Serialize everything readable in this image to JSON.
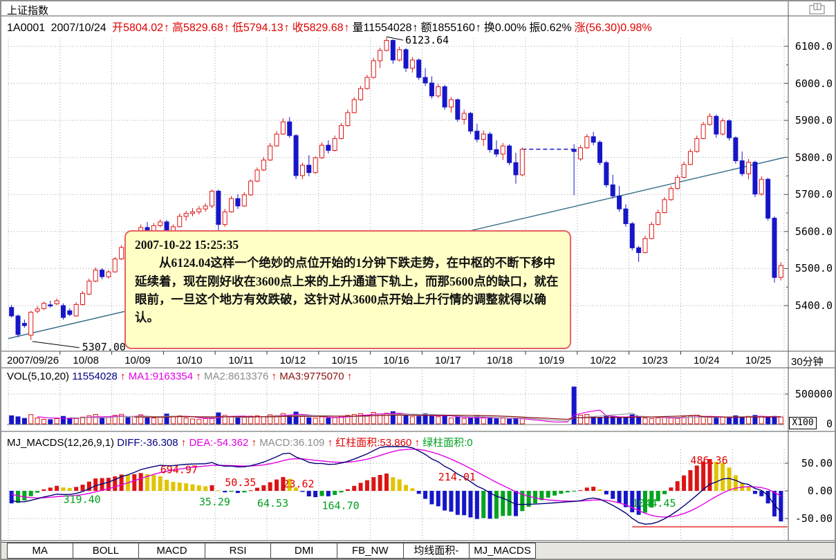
{
  "window": {
    "title": "上证指数",
    "period_label": "30分钟"
  },
  "info_bar": {
    "code": "1A0001",
    "date": "2007/10/24",
    "fields": [
      {
        "label": "开",
        "value": "5804.02",
        "arrow": "↑",
        "color": "red"
      },
      {
        "label": "高",
        "value": "5829.68",
        "arrow": "↑",
        "color": "red"
      },
      {
        "label": "低",
        "value": "5794.13",
        "arrow": "↑",
        "color": "red"
      },
      {
        "label": "收",
        "value": "5829.68",
        "arrow": "↑",
        "color": "red"
      },
      {
        "label": "量",
        "value": "11554028",
        "arrow": "↑",
        "color": "black"
      },
      {
        "label": "额",
        "value": "1855160",
        "arrow": "↑",
        "color": "black"
      },
      {
        "label": "换",
        "value": "0.00%",
        "arrow": "",
        "color": "black"
      },
      {
        "label": "振",
        "value": "0.62%",
        "arrow": "",
        "color": "black"
      },
      {
        "label": "涨",
        "value": "(56.30)0.98%",
        "arrow": "",
        "color": "red"
      }
    ]
  },
  "annotation_box": {
    "timestamp": "2007-10-22 15:25:35",
    "body": "从6124.04这样一个绝妙的点位开始的1分钟下跌走势，在中枢的不断下移中延续着，现在刚好收在3600点上来的上升通道下轨上，而那5600点的缺口，就在眼前，一旦这个地方有效跌破，这针对从3600点开始上升行情的调整就得以确认。"
  },
  "vol_header": {
    "name": "VOL(5,10,20)",
    "value": "11554028",
    "arrow": "↑",
    "ma1": "MA1:9163354",
    "ma2": "MA2:8613376",
    "ma3": "MA3:9775070"
  },
  "macd_header": {
    "name": "MJ_MACDS(12,26,9,1)",
    "arrow": "↑",
    "diff": "DIFF:-36.308",
    "dea": "DEA:-54.362",
    "macd": "MACD:36.109",
    "red_area": "红柱面积:53.860",
    "green_area": "绿柱面积:0"
  },
  "axes": {
    "price_ticks": [
      "6100.0",
      "6000.0",
      "5900.0",
      "5800.0",
      "5700.0",
      "5600.0",
      "5500.0",
      "5400.0"
    ],
    "vol_ticks": [
      "500000",
      "0"
    ],
    "vol_unit": "X100",
    "macd_ticks": [
      "50.00",
      "0.00",
      "-50.00"
    ]
  },
  "tabs": [
    "MA",
    "BOLL",
    "MACD",
    "RSI",
    "DMI",
    "FB_NW",
    "均线面积-",
    "MJ_MACDS"
  ],
  "colors": {
    "up": "#dc1414",
    "down": "#1616c8",
    "trend": "#2e6a82",
    "ma1": "#e400e4",
    "ma2": "#9a9a9a",
    "ma3": "#8a1010",
    "diff": "#000078",
    "dea": "#e400e4",
    "hist_up": "#dc1414",
    "hist_up_fall": "#e0c400",
    "hist_dn": "#1616c8",
    "hist_dn_rise": "#00a41e",
    "grid": "#9aa0a6",
    "ref_line": "#e00000",
    "annotation_bg": "#ffffc6",
    "annotation_border": "#e86060"
  },
  "chart_data": [
    {
      "type": "candlestick",
      "title": "上证指数 30分钟K线",
      "ylim": [
        5280,
        6128
      ],
      "bars_per_day": 8,
      "dates": [
        "2007/09/26",
        "10/08",
        "10/09",
        "10/10",
        "10/11",
        "10/12",
        "10/15",
        "10/16",
        "10/17",
        "10/18",
        "10/19",
        "10/22",
        "10/23",
        "10/24",
        "10/25"
      ],
      "point_labels": [
        {
          "text": "6123.64",
          "bar": 58,
          "price": 6124,
          "side": "peak"
        },
        {
          "text": "5307.00",
          "bar": 3,
          "price": 5307,
          "side": "low"
        }
      ],
      "trendline": {
        "x1_bar": 0,
        "price1": 5311,
        "x2_bar": 120,
        "price2": 5801
      },
      "gap_line": {
        "from_bar": 79,
        "to_bar": 87,
        "price": 5822
      },
      "candles": [
        [
          5395,
          5402,
          5368,
          5372
        ],
        [
          5372,
          5376,
          5315,
          5322
        ],
        [
          5352,
          5362,
          5340,
          5346
        ],
        [
          5320,
          5386,
          5307,
          5382
        ],
        [
          5385,
          5399,
          5379,
          5391
        ],
        [
          5392,
          5411,
          5388,
          5406
        ],
        [
          5402,
          5413,
          5394,
          5399
        ],
        [
          5405,
          5419,
          5401,
          5413
        ],
        [
          5400,
          5406,
          5362,
          5368
        ],
        [
          5386,
          5393,
          5371,
          5376
        ],
        [
          5372,
          5409,
          5370,
          5403
        ],
        [
          5403,
          5439,
          5400,
          5433
        ],
        [
          5431,
          5473,
          5429,
          5466
        ],
        [
          5466,
          5503,
          5463,
          5496
        ],
        [
          5496,
          5501,
          5471,
          5478
        ],
        [
          5478,
          5496,
          5473,
          5491
        ],
        [
          5491,
          5531,
          5489,
          5526
        ],
        [
          5526,
          5563,
          5523,
          5557
        ],
        [
          5557,
          5571,
          5541,
          5548
        ],
        [
          5548,
          5586,
          5545,
          5581
        ],
        [
          5581,
          5619,
          5579,
          5611
        ],
        [
          5611,
          5626,
          5596,
          5601
        ],
        [
          5601,
          5623,
          5597,
          5616
        ],
        [
          5616,
          5633,
          5611,
          5626
        ],
        [
          5626,
          5631,
          5588,
          5596
        ],
        [
          5596,
          5619,
          5591,
          5613
        ],
        [
          5613,
          5649,
          5611,
          5641
        ],
        [
          5641,
          5656,
          5629,
          5649
        ],
        [
          5649,
          5663,
          5641,
          5653
        ],
        [
          5653,
          5669,
          5646,
          5661
        ],
        [
          5661,
          5676,
          5653,
          5669
        ],
        [
          5669,
          5713,
          5663,
          5709
        ],
        [
          5709,
          5713,
          5558,
          5619
        ],
        [
          5619,
          5661,
          5613,
          5653
        ],
        [
          5653,
          5696,
          5651,
          5689
        ],
        [
          5689,
          5701,
          5661,
          5669
        ],
        [
          5669,
          5706,
          5666,
          5699
        ],
        [
          5699,
          5741,
          5696,
          5736
        ],
        [
          5736,
          5773,
          5733,
          5766
        ],
        [
          5766,
          5801,
          5763,
          5793
        ],
        [
          5793,
          5839,
          5791,
          5831
        ],
        [
          5831,
          5871,
          5829,
          5863
        ],
        [
          5863,
          5906,
          5861,
          5896
        ],
        [
          5896,
          5909,
          5853,
          5859
        ],
        [
          5859,
          5863,
          5742,
          5751
        ],
        [
          5751,
          5786,
          5741,
          5779
        ],
        [
          5779,
          5806,
          5749,
          5759
        ],
        [
          5759,
          5803,
          5756,
          5799
        ],
        [
          5799,
          5841,
          5796,
          5833
        ],
        [
          5833,
          5846,
          5811,
          5819
        ],
        [
          5819,
          5859,
          5816,
          5851
        ],
        [
          5851,
          5893,
          5849,
          5886
        ],
        [
          5886,
          5929,
          5883,
          5921
        ],
        [
          5921,
          5963,
          5919,
          5956
        ],
        [
          5956,
          5993,
          5953,
          5986
        ],
        [
          5986,
          6023,
          5983,
          6016
        ],
        [
          6016,
          6069,
          6013,
          6061
        ],
        [
          6061,
          6096,
          6041,
          6089
        ],
        [
          6089,
          6124,
          6086,
          6116
        ],
        [
          6116,
          6119,
          6053,
          6063
        ],
        [
          6063,
          6099,
          6059,
          6091
        ],
        [
          6091,
          6095,
          6031,
          6041
        ],
        [
          6041,
          6071,
          6029,
          6063
        ],
        [
          6063,
          6067,
          6009,
          6016
        ],
        [
          6016,
          6041,
          5993,
          6001
        ],
        [
          6001,
          6019,
          5959,
          5966
        ],
        [
          5966,
          5999,
          5961,
          5991
        ],
        [
          5991,
          5996,
          5929,
          5936
        ],
        [
          5936,
          5963,
          5921,
          5956
        ],
        [
          5956,
          5959,
          5896,
          5903
        ],
        [
          5903,
          5929,
          5889,
          5919
        ],
        [
          5919,
          5923,
          5863,
          5871
        ],
        [
          5871,
          5891,
          5841,
          5849
        ],
        [
          5849,
          5873,
          5831,
          5863
        ],
        [
          5863,
          5869,
          5813,
          5821
        ],
        [
          5821,
          5846,
          5801,
          5809
        ],
        [
          5809,
          5839,
          5793,
          5831
        ],
        [
          5831,
          5836,
          5779,
          5786
        ],
        [
          5786,
          5813,
          5729,
          5753
        ],
        [
          5753,
          5827,
          5749,
          5822
        ],
        null,
        null,
        null,
        null,
        null,
        null,
        null,
        [
          5822,
          5836,
          5698,
          5816
        ],
        [
          5796,
          5833,
          5791,
          5826
        ],
        [
          5826,
          5863,
          5823,
          5856
        ],
        [
          5856,
          5869,
          5833,
          5841
        ],
        [
          5841,
          5846,
          5779,
          5786
        ],
        [
          5786,
          5791,
          5719,
          5726
        ],
        [
          5726,
          5753,
          5689,
          5696
        ],
        [
          5696,
          5723,
          5653,
          5661
        ],
        [
          5661,
          5673,
          5613,
          5621
        ],
        [
          5621,
          5626,
          5549,
          5556
        ],
        [
          5556,
          5561,
          5518,
          5543
        ],
        [
          5543,
          5589,
          5541,
          5581
        ],
        [
          5581,
          5626,
          5579,
          5619
        ],
        [
          5619,
          5659,
          5616,
          5651
        ],
        [
          5651,
          5693,
          5649,
          5686
        ],
        [
          5686,
          5723,
          5683,
          5716
        ],
        [
          5716,
          5753,
          5713,
          5746
        ],
        [
          5746,
          5789,
          5743,
          5781
        ],
        [
          5781,
          5823,
          5779,
          5816
        ],
        [
          5816,
          5859,
          5813,
          5851
        ],
        [
          5851,
          5896,
          5849,
          5889
        ],
        [
          5889,
          5919,
          5886,
          5911
        ],
        [
          5911,
          5916,
          5853,
          5863
        ],
        [
          5863,
          5906,
          5859,
          5899
        ],
        [
          5899,
          5903,
          5846,
          5853
        ],
        [
          5853,
          5857,
          5783,
          5791
        ],
        [
          5791,
          5816,
          5749,
          5756
        ],
        [
          5756,
          5796,
          5741,
          5787
        ],
        [
          5787,
          5791,
          5693,
          5701
        ],
        [
          5701,
          5749,
          5697,
          5741
        ],
        [
          5741,
          5745,
          5629,
          5636
        ],
        [
          5636,
          5641,
          5462,
          5476
        ],
        [
          5476,
          5517,
          5468,
          5508
        ]
      ]
    },
    {
      "type": "bar",
      "title": "VOL(5,10,20)",
      "unit": "X100",
      "ylim": [
        0,
        650000
      ],
      "values": [
        135000,
        118000,
        92000,
        155000,
        98000,
        76000,
        70000,
        86000,
        125000,
        95000,
        88000,
        112000,
        135000,
        158000,
        96000,
        104000,
        142000,
        160000,
        105000,
        118000,
        152000,
        98000,
        98000,
        118000,
        165000,
        120000,
        135000,
        98000,
        80000,
        72000,
        88000,
        95000,
        185000,
        142000,
        118000,
        98000,
        108000,
        128000,
        135000,
        118000,
        152000,
        138000,
        172000,
        145000,
        198000,
        125000,
        102000,
        96000,
        118000,
        96000,
        108000,
        125000,
        142000,
        158000,
        172000,
        138000,
        192000,
        165000,
        178000,
        205000,
        152000,
        138000,
        118000,
        125000,
        168000,
        142000,
        118000,
        135000,
        98000,
        112000,
        88000,
        95000,
        125000,
        98000,
        112000,
        86000,
        95000,
        78000,
        92000,
        85000,
        null,
        null,
        null,
        null,
        null,
        null,
        null,
        620000,
        145000,
        158000,
        122000,
        108000,
        135000,
        118000,
        98000,
        112000,
        152000,
        128000,
        96000,
        88000,
        102000,
        115000,
        98000,
        92000,
        118000,
        132000,
        145000,
        125000,
        108000,
        96000,
        115000,
        98000,
        135000,
        112000,
        125000,
        142000,
        118000,
        105000,
        125000,
        115540
      ]
    },
    {
      "type": "macd",
      "title": "MJ_MACDS(12,26,9,1)",
      "params": [
        12,
        26,
        9,
        1
      ],
      "ylim": [
        -85,
        85
      ],
      "grid_values": [
        50,
        0,
        -50
      ],
      "displayed": {
        "diff": -36.308,
        "dea": -54.362,
        "macd": 36.109,
        "red_area": 53.86,
        "green_area": 0
      },
      "ref_line": {
        "from_bar": 96,
        "to_bar": 120,
        "value": -65
      },
      "labels": [
        {
          "text": "319.40",
          "color": "green",
          "bar": 8,
          "value": -22
        },
        {
          "text": "694.97",
          "color": "red",
          "bar": 23,
          "value": 32
        },
        {
          "text": "35.29",
          "color": "green",
          "bar": 29,
          "value": -26
        },
        {
          "text": "50.35",
          "color": "red",
          "bar": 33,
          "value": 9
        },
        {
          "text": "64.53",
          "color": "green",
          "bar": 38,
          "value": -29
        },
        {
          "text": "23.62",
          "color": "red",
          "bar": 42,
          "value": 6
        },
        {
          "text": "164.70",
          "color": "green",
          "bar": 48,
          "value": -33
        },
        {
          "text": "214.01",
          "color": "red",
          "bar": 66,
          "value": 19
        },
        {
          "text": "1044.45",
          "color": "green",
          "bar": 96,
          "value": -29
        },
        {
          "text": "486.36",
          "color": "red",
          "bar": 105,
          "value": 49
        }
      ]
    }
  ]
}
